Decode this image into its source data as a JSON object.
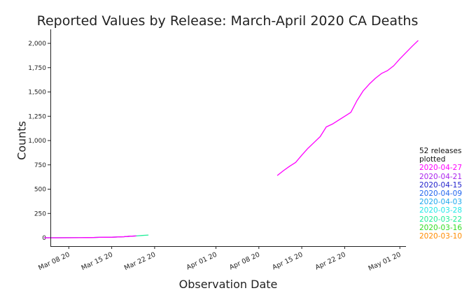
{
  "chart_data": {
    "type": "line",
    "title": "Reported Values by Release: March-April 2020 CA Deaths",
    "xlabel": "Observation Date",
    "ylabel": "Counts",
    "ylim": [
      0,
      2050
    ],
    "xlim": [
      "2020-03-05",
      "2020-05-02"
    ],
    "y_ticks": [
      {
        "value": 0,
        "label": "0"
      },
      {
        "value": 250,
        "label": "250"
      },
      {
        "value": 500,
        "label": "500"
      },
      {
        "value": 750,
        "label": "750"
      },
      {
        "value": 1000,
        "label": "1,000"
      },
      {
        "value": 1250,
        "label": "1,250"
      },
      {
        "value": 1500,
        "label": "1,500"
      },
      {
        "value": 1750,
        "label": "1,750"
      },
      {
        "value": 2000,
        "label": "2,000"
      }
    ],
    "x_ticks": [
      {
        "date": "2020-03-08",
        "label": "Mar 08 20"
      },
      {
        "date": "2020-03-15",
        "label": "Mar 15 20"
      },
      {
        "date": "2020-03-22",
        "label": "Mar 22 20"
      },
      {
        "date": "2020-04-01",
        "label": "Apr 01 20"
      },
      {
        "date": "2020-04-08",
        "label": "Apr 08 20"
      },
      {
        "date": "2020-04-15",
        "label": "Apr 15 20"
      },
      {
        "date": "2020-04-22",
        "label": "Apr 22 20"
      },
      {
        "date": "2020-05-01",
        "label": "May 01 20"
      }
    ],
    "grid": false,
    "legend_position": "right",
    "legend_header": "52 releases plotted",
    "legend": [
      {
        "label": "2020-04-27",
        "color": "#ff00ff"
      },
      {
        "label": "2020-04-21",
        "color": "#aa22ee"
      },
      {
        "label": "2020-04-15",
        "color": "#2222cc"
      },
      {
        "label": "2020-04-09",
        "color": "#2266ee"
      },
      {
        "label": "2020-04-03",
        "color": "#1ea8ee"
      },
      {
        "label": "2020-03-28",
        "color": "#22e8e8"
      },
      {
        "label": "2020-03-22",
        "color": "#22ee99"
      },
      {
        "label": "2020-03-16",
        "color": "#33dd22"
      },
      {
        "label": "2020-03-10",
        "color": "#ff8c00"
      }
    ],
    "series": [
      {
        "color": "#22ee99",
        "points": [
          [
            "2020-03-04",
            0
          ],
          [
            "2020-03-10",
            1
          ],
          [
            "2020-03-12",
            3
          ],
          [
            "2020-03-13",
            4
          ],
          [
            "2020-03-15",
            6
          ],
          [
            "2020-03-16",
            8
          ],
          [
            "2020-03-17",
            11
          ],
          [
            "2020-03-18",
            16
          ],
          [
            "2020-03-19",
            19
          ],
          [
            "2020-03-20",
            24
          ],
          [
            "2020-03-21",
            28
          ]
        ]
      },
      {
        "color": "#aa22ee",
        "points": [
          [
            "2020-03-04",
            0
          ],
          [
            "2020-03-06",
            0
          ],
          [
            "2020-03-10",
            1
          ],
          [
            "2020-03-12",
            3
          ],
          [
            "2020-03-13",
            4
          ],
          [
            "2020-03-15",
            6
          ],
          [
            "2020-03-16",
            8
          ],
          [
            "2020-03-17",
            11
          ],
          [
            "2020-03-18",
            16
          ],
          [
            "2020-03-19",
            19
          ]
        ]
      },
      {
        "color": "#ff00ff",
        "points": [
          [
            "2020-03-04",
            0
          ],
          [
            "2020-03-06",
            0
          ],
          [
            "2020-03-10",
            1
          ],
          [
            "2020-03-12",
            3
          ],
          [
            "2020-03-13",
            4
          ],
          [
            "2020-03-15",
            6
          ],
          [
            "2020-03-16",
            8
          ],
          [
            "2020-03-17",
            11
          ],
          [
            "2020-03-18",
            16
          ],
          [
            "2020-03-19",
            19
          ]
        ]
      },
      {
        "color": "#ff00ff",
        "points": [
          [
            "2020-04-11",
            640
          ],
          [
            "2020-04-12",
            690
          ],
          [
            "2020-04-13",
            735
          ],
          [
            "2020-04-14",
            775
          ],
          [
            "2020-04-15",
            850
          ],
          [
            "2020-04-16",
            920
          ],
          [
            "2020-04-17",
            980
          ],
          [
            "2020-04-18",
            1040
          ],
          [
            "2020-04-19",
            1140
          ],
          [
            "2020-04-20",
            1170
          ],
          [
            "2020-04-21",
            1210
          ],
          [
            "2020-04-22",
            1250
          ],
          [
            "2020-04-23",
            1290
          ],
          [
            "2020-04-24",
            1410
          ],
          [
            "2020-04-25",
            1510
          ],
          [
            "2020-04-26",
            1580
          ],
          [
            "2020-04-27",
            1640
          ],
          [
            "2020-04-28",
            1690
          ],
          [
            "2020-04-29",
            1720
          ],
          [
            "2020-04-30",
            1770
          ],
          [
            "2020-05-01",
            1840
          ],
          [
            "2020-05-02",
            1905
          ],
          [
            "2020-05-03",
            1970
          ],
          [
            "2020-05-04",
            2030
          ]
        ]
      }
    ]
  }
}
